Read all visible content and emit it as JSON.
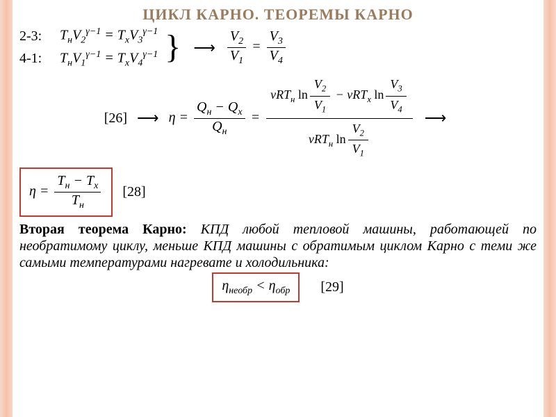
{
  "title": "ЦИКЛ КАРНО. ТЕОРЕМЫ КАРНО",
  "colors": {
    "title": "#9a7b5c",
    "border_gradient": [
      "#f8d7c8",
      "#f5c3a8",
      "#f8d7c8"
    ],
    "box_border": "#c63a2e",
    "text": "#000000",
    "background": "#ffffff"
  },
  "labels": {
    "l23": "2-3:",
    "l41": "4-1:",
    "ref26": "[26]",
    "ref28": "[28]",
    "ref29": "[29]"
  },
  "eq": {
    "adiabat23_lhs": "T_н V_2^{γ−1}",
    "adiabat23_rhs": "T_x V_3^{γ−1}",
    "adiabat41_lhs": "T_н V_1^{γ−1}",
    "adiabat41_rhs": "T_x V_4^{γ−1}",
    "ratio_left_num": "V_2",
    "ratio_left_den": "V_1",
    "ratio_right_num": "V_3",
    "ratio_right_den": "V_4",
    "eta_sym": "η",
    "eta_q_num": "Q_н − Q_x",
    "eta_q_den": "Q_н",
    "big_num_term1": "νRT_н ln(V_2/V_1)",
    "big_num_term2": "νRT_x ln(V_3/V_4)",
    "big_den": "νRT_н ln(V_2/V_1)",
    "eta28_num": "T_н − T_x",
    "eta28_den": "T_н",
    "ineq_lhs": "η_необр",
    "ineq_rhs": "η_обр"
  },
  "theorem": {
    "lead": "Вторая теорема Карно:",
    "body": " КПД любой тепловой машины, работающей по необратимому циклу, меньше КПД машины с обратимым циклом Карно с теми же самыми температурами нагревате и холодильника:"
  },
  "fonts": {
    "title_pt": 22,
    "body_pt": 20,
    "math_pt": 20
  }
}
